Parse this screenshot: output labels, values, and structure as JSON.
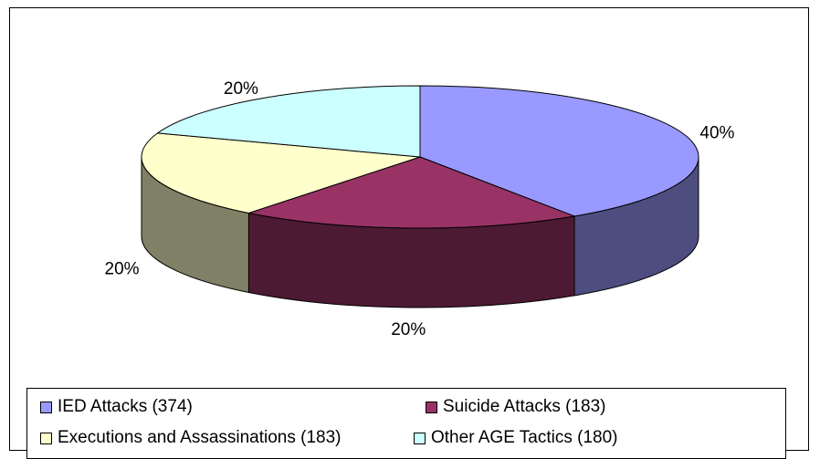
{
  "chart_data": {
    "type": "pie",
    "style": "3d",
    "series": [
      {
        "label": "IED Attacks (374)",
        "value": 374,
        "percent_label": "40%",
        "color": "#9999FF",
        "side_color": "#4D4D80"
      },
      {
        "label": "Suicide Attacks (183)",
        "value": 183,
        "percent_label": "20%",
        "color": "#993366",
        "side_color": "#4D1A33"
      },
      {
        "label": "Executions and Assassinations (183)",
        "value": 183,
        "percent_label": "20%",
        "color": "#FFFFCC",
        "side_color": "#808066"
      },
      {
        "label": "Other AGE Tactics (180)",
        "value": 180,
        "percent_label": "20%",
        "color": "#CCFFFF",
        "side_color": "#668080"
      }
    ],
    "legend_position": "bottom"
  }
}
